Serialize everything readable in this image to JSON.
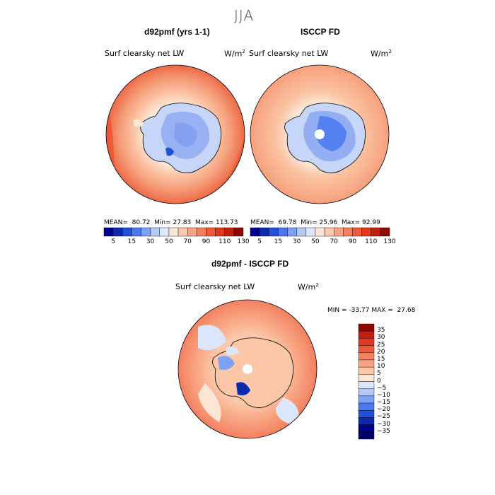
{
  "season": "JJA",
  "panels": [
    {
      "title": "d92pmf (yrs 1-1)",
      "variable": "Surf clearsky net LW",
      "units_base": "W/m",
      "units_exp": "2",
      "mean_label": "MEAN=",
      "mean_value": "80.72",
      "min_label": "Min=",
      "min_value": "27.83",
      "max_label": "Max=",
      "max_value": "113.73"
    },
    {
      "title": "ISCCP FD",
      "variable": "Surf clearsky net LW",
      "units_base": "W/m",
      "units_exp": "2",
      "mean_label": "MEAN=",
      "mean_value": "69.78",
      "min_label": "Min=",
      "min_value": "25.96",
      "max_label": "Max=",
      "max_value": "92.99"
    }
  ],
  "field_colorbar": {
    "ticks": [
      "5",
      "15",
      "30",
      "50",
      "70",
      "90",
      "110",
      "130"
    ],
    "colors": [
      "#00008c",
      "#0c2ab0",
      "#2350d8",
      "#4a78f0",
      "#7ea2f5",
      "#b3c8f7",
      "#dce6fa",
      "#fbe6d6",
      "#fbc7a8",
      "#f8a482",
      "#f4805f",
      "#ee5b3c",
      "#e3381f",
      "#c41e10",
      "#8c0a00"
    ]
  },
  "diff_panel": {
    "title": "d92pmf - ISCCP FD",
    "variable": "Surf clearsky net LW",
    "units_base": "W/m",
    "units_exp": "2",
    "min_label": "MIN =",
    "min_value": "-33.77",
    "max_label": "MAX =",
    "max_value": "27.68"
  },
  "diff_colorbar": {
    "ticks": [
      "35",
      "30",
      "25",
      "20",
      "15",
      "10",
      "5",
      "0",
      "−5",
      "−10",
      "−15",
      "−20",
      "−25",
      "−30",
      "−35"
    ],
    "colors": [
      "#8c0a00",
      "#c41e10",
      "#e3381f",
      "#ee5b3c",
      "#f4805f",
      "#f8a482",
      "#fbc7a8",
      "#fbe6d6",
      "#dce6fa",
      "#b3c8f7",
      "#7ea2f5",
      "#4a78f0",
      "#2350d8",
      "#0c2ab0",
      "#00008c",
      "#00006a"
    ]
  },
  "colors": {
    "ocean_warm": "#f08060",
    "ocean_mid": "#f6a07c",
    "ocean_light": "#fbc4a4",
    "ice_pale": "#fbe6d6",
    "land_light_blue": "#c6d6f8",
    "land_blue": "#8eaaf2",
    "land_dark_blue": "#4a70e6"
  }
}
